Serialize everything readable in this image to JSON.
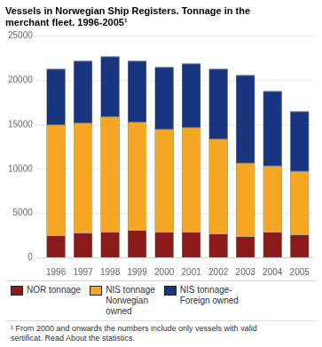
{
  "chart_data": {
    "type": "bar",
    "title": "Vessels in Norwegian Ship Registers. Tonnage in the\nmerchant fleet. 1996-2005¹",
    "categories": [
      "1996",
      "1997",
      "1998",
      "1999",
      "2000",
      "2001",
      "2002",
      "2003",
      "2004",
      "2005"
    ],
    "series": [
      {
        "name": "NOR tonnage",
        "color": "#8B1A1A",
        "values": [
          2500,
          2800,
          2900,
          3100,
          2900,
          2900,
          2700,
          2400,
          2900,
          2600
        ]
      },
      {
        "name": "NIS tonnage\nNorwegian\nowned",
        "color": "#F5A623",
        "values": [
          12500,
          12400,
          13000,
          12200,
          11600,
          11800,
          10700,
          8300,
          7400,
          7100
        ]
      },
      {
        "name": "NIS tonnage-\nForeign owned",
        "color": "#1A3580",
        "values": [
          6300,
          7000,
          6800,
          6900,
          7000,
          7200,
          7900,
          9900,
          8500,
          6800
        ]
      }
    ],
    "stacked": true,
    "ylim": [
      0,
      25000
    ],
    "yticks": [
      0,
      5000,
      10000,
      15000,
      20000,
      25000
    ],
    "grid": true,
    "legend": "bottom",
    "footnote": "¹ From 2000 and onwards the numbers include only vessels with valid\nsertificat. Read About the statistics."
  }
}
